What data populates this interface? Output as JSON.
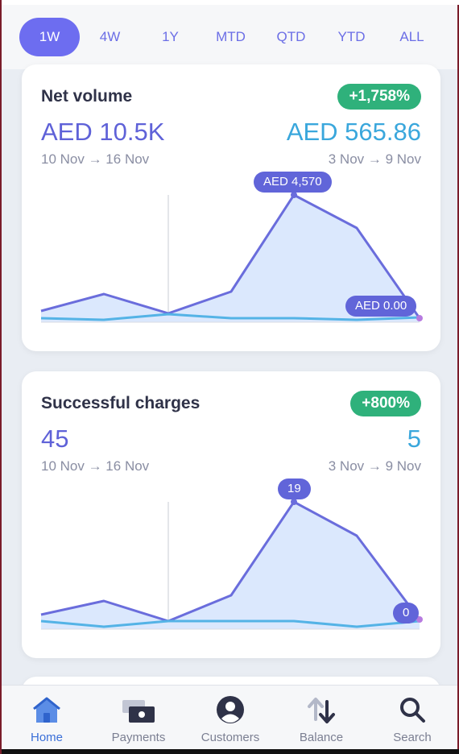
{
  "range_tabs": [
    "1W",
    "4W",
    "1Y",
    "MTD",
    "QTD",
    "YTD",
    "ALL"
  ],
  "active_tab": "1W",
  "net_volume": {
    "title": "Net volume",
    "change_badge": "+1,758%",
    "current_value": "AED 10.5K",
    "current_range": "10 Nov → 16 Nov",
    "previous_value": "AED 565.86",
    "previous_range": "3 Nov → 9 Nov",
    "peak_label": "AED 4,570",
    "end_label": "AED 0.00"
  },
  "successful_charges": {
    "title": "Successful charges",
    "change_badge": "+800%",
    "current_value": "45",
    "current_range": "10 Nov → 16 Nov",
    "previous_value": "5",
    "previous_range": "3 Nov → 9 Nov",
    "peak_label": "19",
    "end_label": "0"
  },
  "nav": {
    "home": "Home",
    "payments": "Payments",
    "customers": "Customers",
    "balance": "Balance",
    "search": "Search"
  },
  "colors": {
    "accent": "#6d6df0",
    "current_line": "#6a6ddc",
    "previous_line": "#54b3e6",
    "badge_green": "#2fb17b",
    "area_fill": "#dbe8fd"
  },
  "icons": [
    "home-icon",
    "payments-icon",
    "customers-icon",
    "balance-icon",
    "search-icon"
  ]
}
